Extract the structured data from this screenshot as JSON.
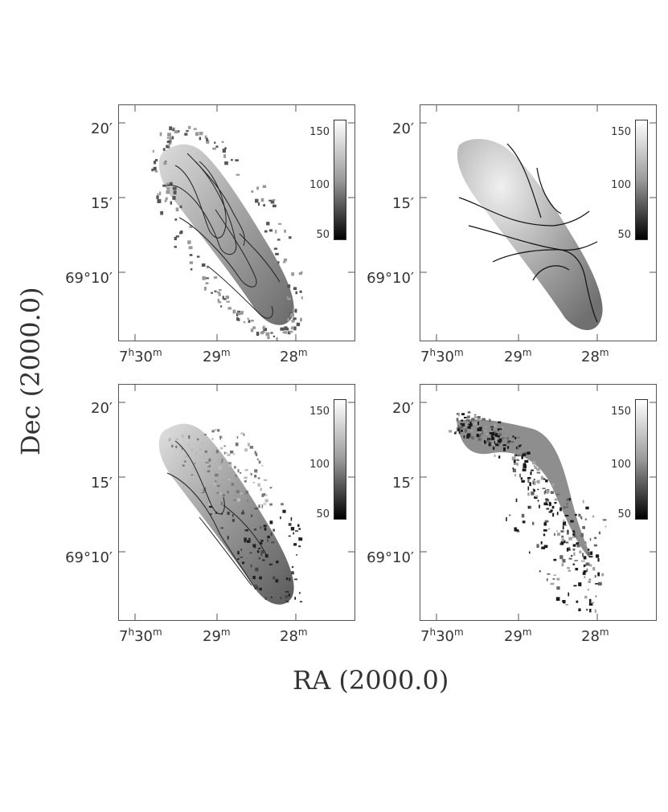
{
  "figure": {
    "xlabel": "RA (2000.0)",
    "ylabel": "Dec (2000.0)",
    "colorbar_ticks": [
      "150",
      "100",
      "50"
    ],
    "y_ticks": [
      {
        "main": "20",
        "prime": "′"
      },
      {
        "main": "15",
        "prime": "′"
      },
      {
        "main": "69°10",
        "prime": "′"
      }
    ],
    "x_ticks": [
      {
        "h": "7",
        "hsup": "h",
        "m": "30",
        "msup": "m"
      },
      {
        "m": "29",
        "msup": "m"
      },
      {
        "m": "28",
        "msup": "m"
      }
    ],
    "panels": [
      {
        "id": "top-left",
        "style": "grey map with contours"
      },
      {
        "id": "top-right",
        "style": "smooth model with contours"
      },
      {
        "id": "bottom-left",
        "style": "noisy map with contours"
      },
      {
        "id": "bottom-right",
        "style": "residual speckle map"
      }
    ]
  }
}
